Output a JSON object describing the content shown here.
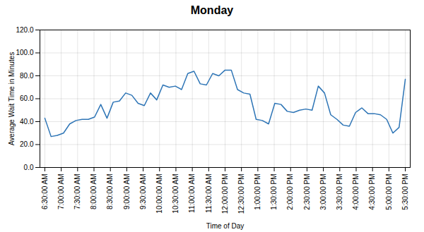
{
  "chart_data": {
    "type": "line",
    "title": "Monday",
    "xlabel": "Time of Day",
    "ylabel": "Average Wait Time in Minutes",
    "color": "#2E75B6",
    "grid": true,
    "x": [
      0,
      0.37931,
      0.758621,
      1.137931,
      1.517241,
      1.896552,
      2.275862,
      2.655172,
      3.034483,
      3.413793,
      3.793103,
      4.172414,
      4.551724,
      4.931034,
      5.310345,
      5.689655,
      6.068966,
      6.448276,
      6.827586,
      7.206897,
      7.586207,
      7.965517,
      8.344828,
      8.724138,
      9.103448,
      9.482759,
      9.862069,
      10.241379,
      10.62069,
      11,
      11.37931,
      11.758621,
      12.137931,
      12.517241,
      12.896552,
      13.275862,
      13.655172,
      14.034483,
      14.413793,
      14.793103,
      15.172414,
      15.551724,
      15.931034,
      16.310345,
      16.689655,
      17.068966,
      17.448276,
      17.827586,
      18.206897,
      18.586207,
      18.965517,
      19.344828,
      19.724138,
      20.103448,
      20.482759,
      20.862069,
      21.241379,
      21.62069,
      22
    ],
    "values": [
      43,
      27,
      28,
      30,
      38,
      41,
      42,
      42,
      44,
      55,
      43,
      57,
      58,
      65,
      63,
      56,
      54,
      65,
      59,
      72,
      70,
      71,
      68,
      82,
      84,
      73,
      72,
      82,
      80,
      85,
      85,
      68,
      65,
      64,
      42,
      41,
      38,
      56,
      55,
      49,
      48,
      50,
      51,
      50,
      71,
      65,
      46,
      42,
      37,
      36,
      48,
      52,
      47,
      47,
      46,
      42,
      30,
      35,
      77
    ],
    "xlim": [
      -0.3,
      22.3
    ],
    "xticks": [
      {
        "value": 0,
        "label": "6:30:00 AM"
      },
      {
        "value": 1,
        "label": "7:00:00 AM"
      },
      {
        "value": 2,
        "label": "7:30:00 AM"
      },
      {
        "value": 3,
        "label": "8:00:00 AM"
      },
      {
        "value": 4,
        "label": "8:30:00 AM"
      },
      {
        "value": 5,
        "label": "9:00:00 AM"
      },
      {
        "value": 6,
        "label": "9:30:00 AM"
      },
      {
        "value": 7,
        "label": "10:00:00 AM"
      },
      {
        "value": 8,
        "label": "10:30:00 AM"
      },
      {
        "value": 9,
        "label": "11:00:00 AM"
      },
      {
        "value": 10,
        "label": "11:30:00 AM"
      },
      {
        "value": 11,
        "label": "12:00:00 PM"
      },
      {
        "value": 12,
        "label": "12:30:00 PM"
      },
      {
        "value": 13,
        "label": "1:00:00 PM"
      },
      {
        "value": 14,
        "label": "1:30:00 PM"
      },
      {
        "value": 15,
        "label": "2:00:00 PM"
      },
      {
        "value": 16,
        "label": "2:30:00 PM"
      },
      {
        "value": 17,
        "label": "3:00:00 PM"
      },
      {
        "value": 18,
        "label": "3:30:00 PM"
      },
      {
        "value": 19,
        "label": "4:00:00 PM"
      },
      {
        "value": 20,
        "label": "4:30:00 PM"
      },
      {
        "value": 21,
        "label": "5:00:00 PM"
      },
      {
        "value": 22,
        "label": "5:30:00 PM"
      }
    ],
    "ylim": [
      0.0,
      120.0
    ],
    "yticks": [
      {
        "value": 0,
        "label": "0.0"
      },
      {
        "value": 20,
        "label": "20.0"
      },
      {
        "value": 40,
        "label": "40.0"
      },
      {
        "value": 60,
        "label": "60.0"
      },
      {
        "value": 80,
        "label": "80.0"
      },
      {
        "value": 100,
        "label": "100.0"
      },
      {
        "value": 120,
        "label": "120.0"
      }
    ]
  }
}
